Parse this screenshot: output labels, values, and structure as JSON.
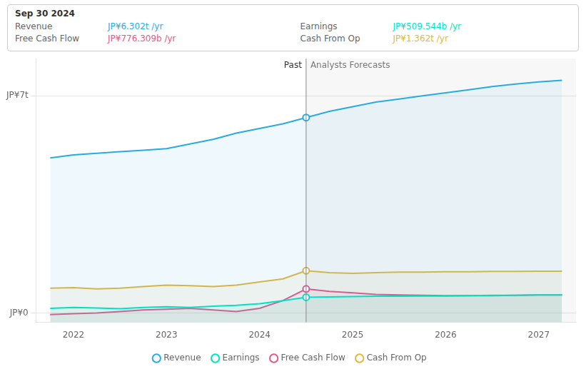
{
  "chart_data": {
    "type": "line",
    "x": [
      2021.75,
      2022.0,
      2022.25,
      2022.5,
      2022.75,
      2023.0,
      2023.25,
      2023.5,
      2023.75,
      2024.0,
      2024.25,
      2024.5,
      2024.75,
      2025.0,
      2025.25,
      2025.5,
      2025.75,
      2026.0,
      2026.25,
      2026.5,
      2026.75,
      2027.0,
      2027.25
    ],
    "series": [
      {
        "name": "Revenue",
        "color": "#29abe2",
        "values": [
          5.0,
          5.1,
          5.15,
          5.2,
          5.25,
          5.3,
          5.45,
          5.6,
          5.8,
          5.95,
          6.1,
          6.302,
          6.5,
          6.65,
          6.8,
          6.9,
          7.0,
          7.1,
          7.2,
          7.3,
          7.38,
          7.45,
          7.5
        ]
      },
      {
        "name": "Earnings",
        "color": "#00e5c0",
        "values": [
          0.15,
          0.18,
          0.16,
          0.14,
          0.18,
          0.2,
          0.18,
          0.22,
          0.25,
          0.3,
          0.4,
          0.5096,
          0.52,
          0.53,
          0.54,
          0.54,
          0.55,
          0.55,
          0.56,
          0.57,
          0.57,
          0.58,
          0.58
        ]
      },
      {
        "name": "Free Cash Flow",
        "color": "#e05a8a",
        "values": [
          -0.05,
          -0.02,
          0.0,
          0.05,
          0.1,
          0.12,
          0.15,
          0.1,
          0.05,
          0.15,
          0.4,
          0.7763,
          0.7,
          0.65,
          0.6,
          0.58,
          0.57,
          0.56,
          0.56,
          0.56,
          0.57,
          0.58,
          0.58
        ]
      },
      {
        "name": "Cash From Op",
        "color": "#e0b840",
        "values": [
          0.8,
          0.82,
          0.78,
          0.8,
          0.85,
          0.9,
          0.88,
          0.85,
          0.9,
          1.0,
          1.1,
          1.362,
          1.3,
          1.28,
          1.3,
          1.32,
          1.32,
          1.33,
          1.33,
          1.34,
          1.34,
          1.35,
          1.35
        ]
      }
    ],
    "xlim": [
      2021.6,
      2027.4
    ],
    "ylim": [
      -0.3,
      8.2
    ],
    "xticks": [
      2022,
      2023,
      2024,
      2025,
      2026,
      2027
    ],
    "yticks": [
      {
        "value": 0,
        "label": "JP¥0"
      },
      {
        "value": 7,
        "label": "JP¥7t"
      }
    ],
    "grid": "y",
    "legend": "bottom",
    "split_x": 2024.5,
    "annotations": [
      "Past",
      "Analysts Forecasts"
    ],
    "tooltip": {
      "title": "Sep 30 2024",
      "rows": [
        {
          "label": "Revenue",
          "text": "JP¥6.302t /yr",
          "color": "#29abe2"
        },
        {
          "label": "Earnings",
          "text": "JP¥509.544b /yr",
          "color": "#00e5c0"
        },
        {
          "label": "Free Cash Flow",
          "text": "JP¥776.309b /yr",
          "color": "#e05a8a"
        },
        {
          "label": "Cash From Op",
          "text": "JP¥1.362t /yr",
          "color": "#e0b840"
        }
      ]
    }
  }
}
